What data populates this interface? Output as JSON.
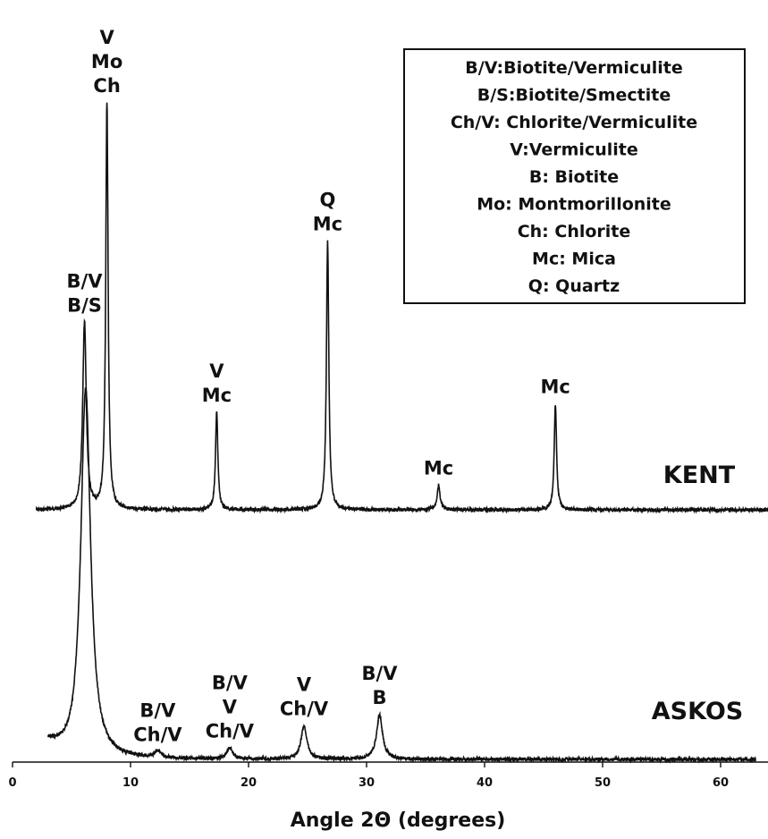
{
  "chart_data": {
    "type": "line",
    "title": "",
    "xlabel": "Angle 2Θ (degrees)",
    "ylabel": "",
    "xlim": [
      0,
      65
    ],
    "xticks": [
      0,
      10,
      20,
      30,
      40,
      50,
      60
    ],
    "grid": false,
    "legend_placement": "top-right",
    "legend": [
      "B/V:Biotite/Vermiculite",
      "B/S:Biotite/Smectite",
      "Ch/V: Chlorite/Vermiculite",
      "V:Vermiculite",
      "B: Biotite",
      "Mo: Montmorillonite",
      "Ch: Chlorite",
      "Mc: Mica",
      "Q: Quartz"
    ],
    "series": [
      {
        "name": "KENT",
        "baseline": 0,
        "x_range": [
          2,
          64.5
        ],
        "peaks": [
          {
            "x": 6.1,
            "height": 0.46,
            "width": 0.18,
            "labels": [
              "B/V",
              "B/S"
            ]
          },
          {
            "x": 8.0,
            "height": 1.0,
            "width": 0.12,
            "labels": [
              "V",
              "Mo",
              "Ch"
            ]
          },
          {
            "x": 17.3,
            "height": 0.24,
            "width": 0.12,
            "labels": [
              "V",
              "Mc"
            ]
          },
          {
            "x": 26.7,
            "height": 0.66,
            "width": 0.12,
            "labels": [
              "Q",
              "Mc"
            ]
          },
          {
            "x": 36.1,
            "height": 0.06,
            "width": 0.15,
            "labels": [
              "Mc"
            ]
          },
          {
            "x": 46.0,
            "height": 0.26,
            "width": 0.12,
            "labels": [
              "Mc"
            ]
          }
        ]
      },
      {
        "name": "ASKOS",
        "baseline": 0,
        "x_range": [
          3,
          63
        ],
        "peaks": [
          {
            "x": 6.2,
            "height": 1.0,
            "width": 0.5,
            "labels": []
          },
          {
            "x": 12.3,
            "height": 0.02,
            "width": 0.3,
            "labels": [
              "B/V",
              "Ch/V"
            ]
          },
          {
            "x": 18.4,
            "height": 0.03,
            "width": 0.3,
            "labels": [
              "B/V",
              "V",
              "Ch/V"
            ]
          },
          {
            "x": 24.7,
            "height": 0.09,
            "width": 0.3,
            "labels": [
              "V",
              "Ch/V"
            ]
          },
          {
            "x": 31.1,
            "height": 0.12,
            "width": 0.3,
            "labels": [
              "B/V",
              "B"
            ]
          }
        ]
      }
    ]
  }
}
